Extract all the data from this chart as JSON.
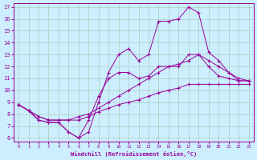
{
  "xlabel": "Windchill (Refroidissement éolien,°C)",
  "bg_color": "#cceeff",
  "grid_color": "#aaccbb",
  "line_color": "#990099",
  "xlim": [
    -0.5,
    23.5
  ],
  "ylim": [
    5.7,
    17.3
  ],
  "xticks": [
    0,
    1,
    2,
    3,
    4,
    5,
    6,
    7,
    8,
    9,
    10,
    11,
    12,
    13,
    14,
    15,
    16,
    17,
    18,
    19,
    20,
    21,
    22,
    23
  ],
  "yticks": [
    6,
    7,
    8,
    9,
    10,
    11,
    12,
    13,
    14,
    15,
    16,
    17
  ],
  "series": [
    {
      "x": [
        0,
        1,
        2,
        3,
        4,
        5,
        6,
        7,
        8,
        9,
        10,
        11,
        12,
        13,
        14,
        15,
        16,
        17,
        18,
        19,
        20,
        21,
        22,
        23
      ],
      "y": [
        8.8,
        8.3,
        7.8,
        7.5,
        7.5,
        7.5,
        7.5,
        7.8,
        8.2,
        8.5,
        8.8,
        9.0,
        9.2,
        9.5,
        9.8,
        10.0,
        10.2,
        10.5,
        10.5,
        10.5,
        10.5,
        10.5,
        10.5,
        10.5
      ]
    },
    {
      "x": [
        0,
        1,
        2,
        3,
        4,
        5,
        6,
        7,
        8,
        9,
        10,
        11,
        12,
        13,
        14,
        15,
        16,
        17,
        18,
        19,
        20,
        21,
        22,
        23
      ],
      "y": [
        8.8,
        8.3,
        7.8,
        7.5,
        7.5,
        7.5,
        7.8,
        8.0,
        8.5,
        9.0,
        9.5,
        10.0,
        10.5,
        11.0,
        11.5,
        12.0,
        12.2,
        12.5,
        13.0,
        12.5,
        12.0,
        11.5,
        11.0,
        10.8
      ]
    },
    {
      "x": [
        0,
        1,
        2,
        3,
        4,
        5,
        6,
        7,
        8,
        9,
        10,
        11,
        12,
        13,
        14,
        15,
        16,
        17,
        18,
        19,
        20,
        21,
        22,
        23
      ],
      "y": [
        8.8,
        8.3,
        7.5,
        7.3,
        7.3,
        6.5,
        6.0,
        6.5,
        9.0,
        11.5,
        13.0,
        13.5,
        12.5,
        13.0,
        15.8,
        15.8,
        16.0,
        17.0,
        16.5,
        13.2,
        12.5,
        11.5,
        10.8,
        10.8
      ]
    },
    {
      "x": [
        0,
        1,
        2,
        3,
        4,
        5,
        6,
        7,
        8,
        9,
        10,
        11,
        12,
        13,
        14,
        15,
        16,
        17,
        18,
        19,
        20,
        21,
        22,
        23
      ],
      "y": [
        8.8,
        8.3,
        7.5,
        7.3,
        7.3,
        6.5,
        6.0,
        7.5,
        9.5,
        11.0,
        11.5,
        11.5,
        11.0,
        11.2,
        12.0,
        12.0,
        12.0,
        13.0,
        13.0,
        12.0,
        11.2,
        11.0,
        10.8,
        10.8
      ]
    }
  ]
}
